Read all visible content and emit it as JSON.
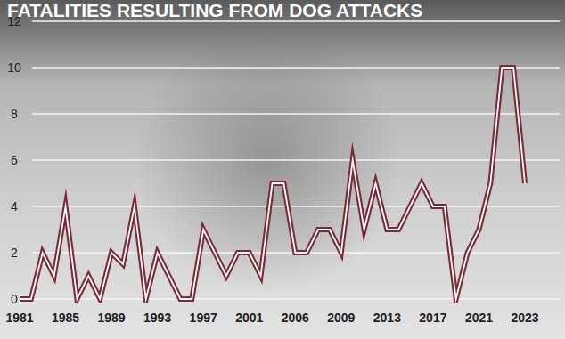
{
  "chart_data": {
    "type": "line",
    "title": "FATALITIES RESULTING FROM DOG ATTACKS",
    "categories": [
      "1981",
      null,
      null,
      null,
      "1985",
      null,
      null,
      null,
      "1989",
      null,
      null,
      null,
      "1993",
      null,
      null,
      null,
      "1997",
      null,
      null,
      null,
      "2001",
      null,
      null,
      null,
      "2006",
      null,
      null,
      null,
      "2009",
      null,
      null,
      null,
      "2013",
      null,
      null,
      null,
      "2017",
      null,
      null,
      null,
      "2021",
      null,
      null,
      null,
      "2023"
    ],
    "values": [
      0,
      0,
      2,
      1,
      4,
      0,
      1,
      0,
      2,
      1.5,
      4,
      0,
      2,
      1,
      0,
      0,
      3,
      2,
      1,
      2,
      2,
      1,
      5,
      5,
      2,
      2,
      3,
      3,
      2,
      6,
      3,
      5,
      3,
      3,
      4,
      5,
      4,
      4,
      0,
      2,
      3,
      5,
      10,
      10,
      5
    ],
    "color": "#7b2a36",
    "ylim": [
      0,
      12
    ],
    "yticks": [
      0,
      2,
      4,
      6,
      8,
      10,
      12
    ],
    "grid": true
  }
}
